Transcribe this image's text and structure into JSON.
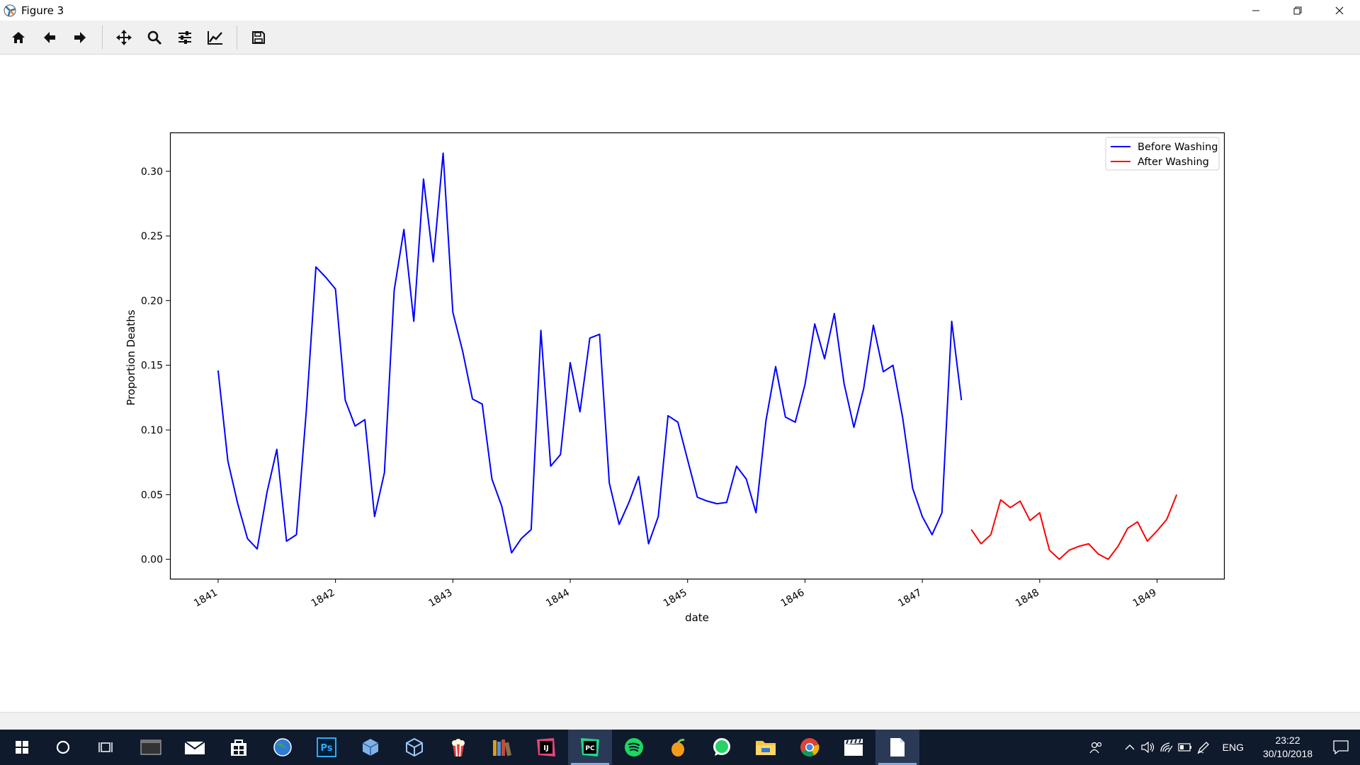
{
  "window": {
    "title": "Figure 3",
    "app_icon": "matplotlib-icon",
    "controls": [
      "minimize-icon",
      "restore-icon",
      "close-icon"
    ]
  },
  "toolbar": {
    "buttons": [
      {
        "name": "home-button",
        "icon": "home-icon"
      },
      {
        "name": "back-button",
        "icon": "arrow-left-icon"
      },
      {
        "name": "forward-button",
        "icon": "arrow-right-icon"
      },
      {
        "name": "pan-button",
        "icon": "move-icon"
      },
      {
        "name": "zoom-button",
        "icon": "magnifier-icon"
      },
      {
        "name": "configure-subplots-button",
        "icon": "sliders-icon"
      },
      {
        "name": "edit-axes-button",
        "icon": "line-chart-icon"
      },
      {
        "name": "save-button",
        "icon": "floppy-disk-icon"
      }
    ]
  },
  "chart_data": {
    "type": "line",
    "title": "",
    "xlabel": "date",
    "ylabel": "Proportion Deaths",
    "x_ticks": [
      "1841",
      "1842",
      "1843",
      "1844",
      "1845",
      "1846",
      "1847",
      "1848",
      "1849"
    ],
    "y_ticks": [
      "0.00",
      "0.05",
      "0.10",
      "0.15",
      "0.20",
      "0.25",
      "0.30"
    ],
    "xlim": [
      1840.59,
      1849.57
    ],
    "ylim": [
      -0.015,
      0.33
    ],
    "grid": false,
    "legend_position": "upper right",
    "series": [
      {
        "name": "Before Washing",
        "color": "#0000ff",
        "x": [
          1841.0,
          1841.083,
          1841.167,
          1841.25,
          1841.333,
          1841.417,
          1841.5,
          1841.583,
          1841.667,
          1841.75,
          1841.833,
          1841.917,
          1842.0,
          1842.083,
          1842.167,
          1842.25,
          1842.333,
          1842.417,
          1842.5,
          1842.583,
          1842.667,
          1842.75,
          1842.833,
          1842.917,
          1843.0,
          1843.083,
          1843.167,
          1843.25,
          1843.333,
          1843.417,
          1843.5,
          1843.583,
          1843.667,
          1843.75,
          1843.833,
          1843.917,
          1844.0,
          1844.083,
          1844.167,
          1844.25,
          1844.333,
          1844.417,
          1844.5,
          1844.583,
          1844.667,
          1844.75,
          1844.833,
          1844.917,
          1845.0,
          1845.083,
          1845.167,
          1845.25,
          1845.333,
          1845.417,
          1845.5,
          1845.583,
          1845.667,
          1845.75,
          1845.833,
          1845.917,
          1846.0,
          1846.083,
          1846.167,
          1846.25,
          1846.333,
          1846.417,
          1846.5,
          1846.583,
          1846.667,
          1846.75,
          1846.833,
          1846.917,
          1847.0,
          1847.083,
          1847.167,
          1847.25,
          1847.333
        ],
        "values": [
          0.146,
          0.076,
          0.043,
          0.016,
          0.008,
          0.052,
          0.085,
          0.014,
          0.019,
          0.113,
          0.226,
          0.218,
          0.209,
          0.123,
          0.103,
          0.108,
          0.033,
          0.067,
          0.208,
          0.255,
          0.184,
          0.294,
          0.23,
          0.314,
          0.191,
          0.161,
          0.124,
          0.12,
          0.062,
          0.041,
          0.005,
          0.016,
          0.023,
          0.177,
          0.072,
          0.081,
          0.152,
          0.114,
          0.171,
          0.174,
          0.059,
          0.027,
          0.044,
          0.064,
          0.012,
          0.033,
          0.111,
          0.106,
          0.077,
          0.048,
          0.045,
          0.043,
          0.044,
          0.072,
          0.062,
          0.036,
          0.107,
          0.149,
          0.11,
          0.106,
          0.135,
          0.182,
          0.155,
          0.19,
          0.136,
          0.102,
          0.132,
          0.181,
          0.145,
          0.15,
          0.109,
          0.055,
          0.033,
          0.019,
          0.036,
          0.184,
          0.123
        ]
      },
      {
        "name": "After Washing",
        "color": "#ff0000",
        "x": [
          1847.417,
          1847.5,
          1847.583,
          1847.667,
          1847.75,
          1847.833,
          1847.917,
          1848.0,
          1848.083,
          1848.167,
          1848.25,
          1848.333,
          1848.417,
          1848.5,
          1848.583,
          1848.667,
          1848.75,
          1848.833,
          1848.917,
          1849.0,
          1849.083,
          1849.167
        ],
        "values": [
          0.023,
          0.012,
          0.019,
          0.046,
          0.04,
          0.045,
          0.03,
          0.036,
          0.007,
          0.0,
          0.007,
          0.01,
          0.012,
          0.004,
          0.0,
          0.01,
          0.024,
          0.029,
          0.014,
          0.022,
          0.031,
          0.05
        ]
      }
    ]
  },
  "taskbar": {
    "apps": [
      "start-icon",
      "cortana-icon",
      "task-view-icon",
      "terminal-icon",
      "mail-icon",
      "store-icon",
      "browser-globe-icon",
      "photoshop-icon",
      "cube-icon",
      "virtualbox-icon",
      "popcorn-icon",
      "books-icon",
      "intellij-icon",
      "pycharm-icon",
      "spotify-icon",
      "fl-studio-icon",
      "whatsapp-icon",
      "file-explorer-icon",
      "chrome-icon",
      "media-clapper-icon",
      "document-icon"
    ],
    "ps_label": "Ps",
    "ij_label": "IJ",
    "pc_label": "PC",
    "language": "ENG",
    "time": "23:22",
    "date": "30/10/2018"
  }
}
